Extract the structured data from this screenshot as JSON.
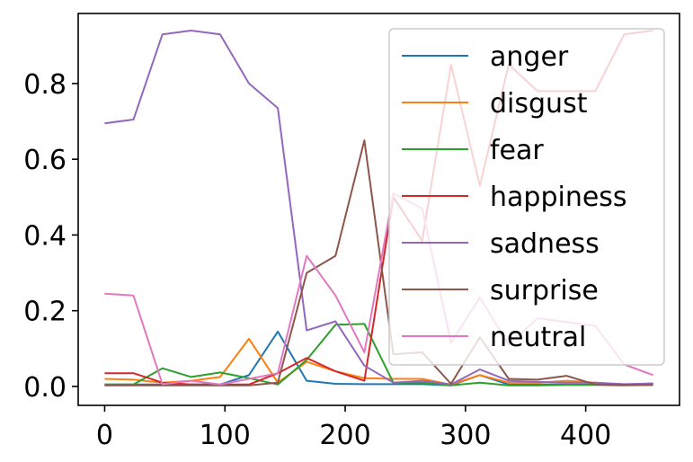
{
  "chart_data": {
    "type": "line",
    "title": "",
    "xlabel": "",
    "ylabel": "",
    "xlim": [
      -22,
      478
    ],
    "ylim": [
      -0.05,
      0.985
    ],
    "x_ticks": [
      0,
      100,
      200,
      300,
      400
    ],
    "y_ticks": [
      0.0,
      0.2,
      0.4,
      0.6,
      0.8
    ],
    "x_tick_labels": [
      "0",
      "100",
      "200",
      "300",
      "400"
    ],
    "y_tick_labels": [
      "0.0",
      "0.2",
      "0.4",
      "0.6",
      "0.8"
    ],
    "legend_position": "top-right",
    "x": [
      0,
      24,
      48,
      72,
      96,
      120,
      144,
      168,
      192,
      216,
      240,
      264,
      288,
      312,
      336,
      360,
      384,
      408,
      432,
      456
    ],
    "series": [
      {
        "name": "anger",
        "color": "#1f77b4",
        "values": [
          0.005,
          0.005,
          0.005,
          0.005,
          0.005,
          0.03,
          0.145,
          0.015,
          0.007,
          0.006,
          0.006,
          0.006,
          0.003,
          0.03,
          0.005,
          0.005,
          0.005,
          0.005,
          0.005,
          0.008
        ]
      },
      {
        "name": "disgust",
        "color": "#ff7f0e",
        "values": [
          0.02,
          0.018,
          0.01,
          0.015,
          0.025,
          0.126,
          0.01,
          0.065,
          0.04,
          0.022,
          0.02,
          0.02,
          0.005,
          0.03,
          0.01,
          0.01,
          0.015,
          0.01,
          0.005,
          0.006
        ]
      },
      {
        "name": "fear",
        "color": "#2ca02c",
        "values": [
          0.005,
          0.005,
          0.048,
          0.025,
          0.037,
          0.022,
          0.005,
          0.07,
          0.163,
          0.165,
          0.01,
          0.01,
          0.003,
          0.01,
          0.003,
          0.003,
          0.004,
          0.004,
          0.003,
          0.004
        ]
      },
      {
        "name": "happiness",
        "color": "#d62728",
        "values": [
          0.035,
          0.035,
          0.01,
          0.005,
          0.005,
          0.005,
          0.035,
          0.075,
          0.04,
          0.015,
          0.5,
          0.385,
          0.85,
          0.53,
          0.85,
          0.78,
          0.78,
          0.78,
          0.93,
          0.94
        ]
      },
      {
        "name": "sadness",
        "color": "#9467bd",
        "values": [
          0.695,
          0.705,
          0.93,
          0.94,
          0.93,
          0.8,
          0.735,
          0.148,
          0.172,
          0.055,
          0.01,
          0.015,
          0.005,
          0.045,
          0.015,
          0.012,
          0.01,
          0.01,
          0.006,
          0.008
        ]
      },
      {
        "name": "surprise",
        "color": "#8c564b",
        "values": [
          0.003,
          0.003,
          0.003,
          0.003,
          0.003,
          0.003,
          0.01,
          0.3,
          0.345,
          0.65,
          0.085,
          0.09,
          0.007,
          0.13,
          0.02,
          0.018,
          0.028,
          0.005,
          0.004,
          0.004
        ]
      },
      {
        "name": "neutral",
        "color": "#e377c2",
        "values": [
          0.245,
          0.24,
          0.006,
          0.015,
          0.005,
          0.02,
          0.035,
          0.345,
          0.24,
          0.09,
          0.51,
          0.47,
          0.115,
          0.235,
          0.11,
          0.18,
          0.17,
          0.16,
          0.058,
          0.03
        ]
      }
    ]
  }
}
